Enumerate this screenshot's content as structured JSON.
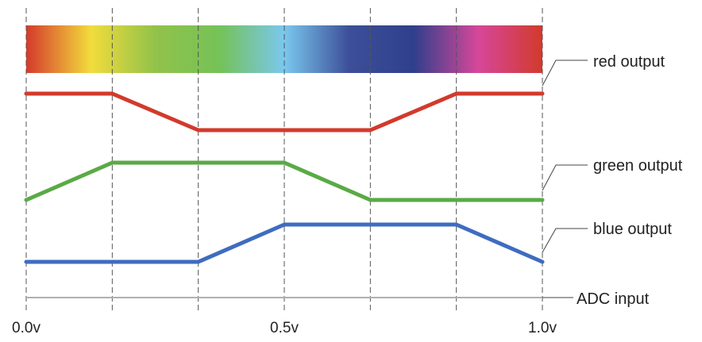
{
  "colors": {
    "red": "#d23a2c",
    "green": "#5aaa46",
    "blue": "#3f6cc0",
    "spectrum": [
      "#d53a2c",
      "#f2dc3c",
      "#92c24a",
      "#74c258",
      "#7ac8ee",
      "#3d4f99",
      "#2f3f8c",
      "#d6479a",
      "#d23a2c"
    ]
  },
  "labels": {
    "red": "red output",
    "green": "green output",
    "blue": "blue output",
    "adc": "ADC input"
  },
  "ticks": [
    "0.0v",
    "0.5v",
    "1.0v"
  ],
  "chart_data": {
    "type": "line",
    "xlabel": "ADC input",
    "x_ticks": [
      0.0,
      0.5,
      1.0
    ],
    "x": [
      0,
      0.1667,
      0.3333,
      0.5,
      0.6667,
      0.8333,
      1.0
    ],
    "series": [
      {
        "name": "red output",
        "values": [
          1,
          1,
          0,
          0,
          0,
          1,
          1
        ]
      },
      {
        "name": "green output",
        "values": [
          0,
          1,
          1,
          1,
          0,
          0,
          0
        ]
      },
      {
        "name": "blue output",
        "values": [
          0,
          0,
          0,
          1,
          1,
          1,
          0
        ]
      }
    ]
  }
}
